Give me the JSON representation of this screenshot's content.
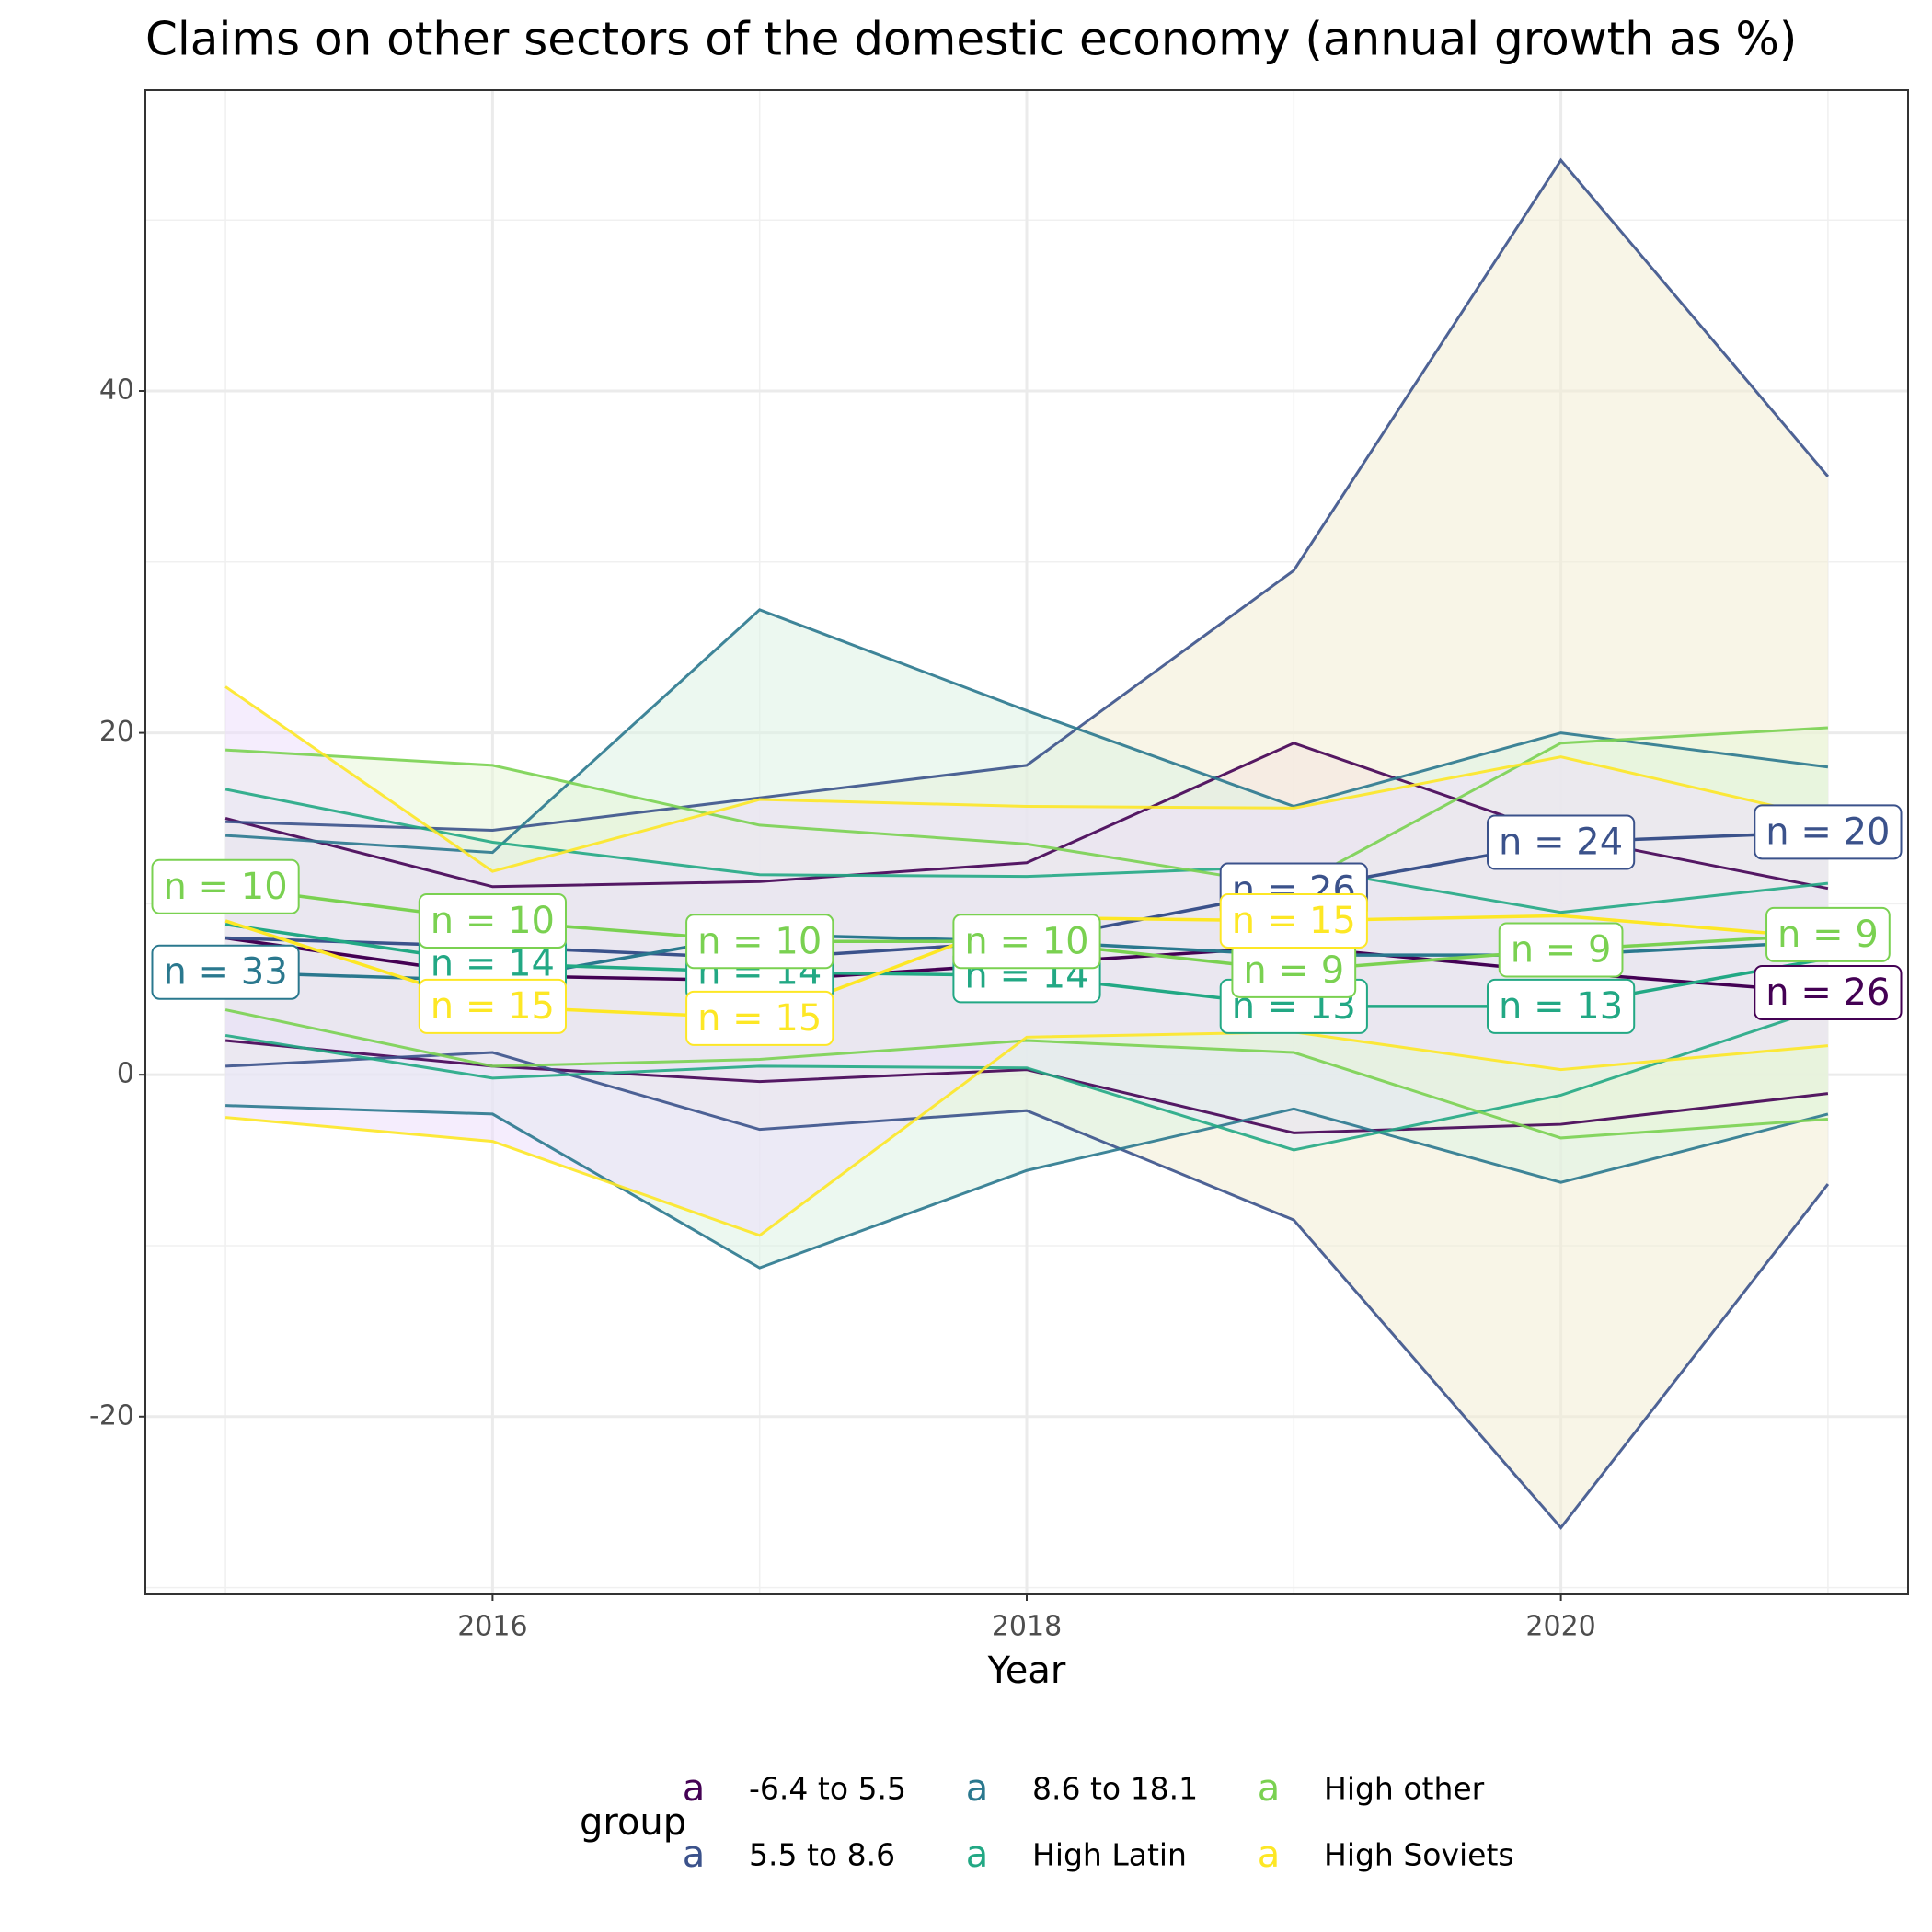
{
  "chart_data": {
    "type": "line",
    "title": "Claims on other sectors of the domestic economy (annual growth as %)",
    "x_label": "Year",
    "legend_title": "group",
    "legend_key": "a",
    "x": [
      2015,
      2016,
      2017,
      2018,
      2019,
      2020,
      2021
    ],
    "xlim": [
      2014.7,
      2021.3
    ],
    "xticks": [
      2016,
      2018,
      2020
    ],
    "ylim": [
      -30.4,
      57.6
    ],
    "yticks": [
      -20,
      0,
      20,
      40
    ],
    "grid": true,
    "legend_position": "bottom",
    "series": [
      {
        "name": "-6.4 to 5.5",
        "color": "#440154",
        "fill": "#f7dcef",
        "values": [
          8,
          5.8,
          5.5,
          6.5,
          7.5,
          6,
          4.8
        ],
        "upper": [
          15,
          11,
          11.3,
          12.4,
          19.4,
          14,
          10.9
        ],
        "lower": [
          2,
          0.5,
          -0.4,
          0.3,
          -3.4,
          -2.9,
          -1.1
        ],
        "labels": [
          null,
          null,
          null,
          null,
          null,
          null,
          "n = 26"
        ]
      },
      {
        "name": "5.5 to 8.6",
        "color": "#3b528b",
        "fill": "#f2edd4",
        "values": [
          8,
          7.5,
          6.8,
          7.8,
          10.8,
          13.6,
          14.2
        ],
        "upper": [
          14.8,
          14.3,
          16.2,
          18.1,
          29.5,
          53.5,
          35
        ],
        "lower": [
          0.5,
          1.3,
          -3.2,
          -2.1,
          -8.5,
          -26.5,
          -6.4
        ],
        "labels": [
          null,
          null,
          null,
          null,
          "n = 26",
          "n = 24",
          "n = 20"
        ]
      },
      {
        "name": "8.6 to 18.1",
        "color": "#2a788e",
        "fill": "#dcf3e3",
        "values": [
          6,
          5.5,
          8.2,
          7.8,
          7,
          7,
          7.8
        ],
        "upper": [
          14,
          13,
          27.2,
          21.3,
          15.7,
          20,
          18
        ],
        "lower": [
          -1.8,
          -2.3,
          -11.3,
          -5.6,
          -2,
          -6.3,
          -2.3
        ],
        "labels": [
          "n = 33",
          null,
          null,
          null,
          null,
          null,
          null
        ]
      },
      {
        "name": "High Latin",
        "color": "#22a884",
        "fill": "#e3e9f5",
        "values": [
          8.8,
          6.5,
          6,
          5.8,
          4,
          4,
          6.8
        ],
        "upper": [
          16.7,
          13.6,
          11.7,
          11.6,
          12.2,
          9.5,
          11.2
        ],
        "lower": [
          2.3,
          -0.2,
          0.5,
          0.4,
          -4.4,
          -1.2,
          4
        ],
        "labels": [
          null,
          "n = 14",
          "n = 14",
          "n = 14",
          "n = 13",
          "n = 13",
          null
        ]
      },
      {
        "name": "High other",
        "color": "#7ad151",
        "fill": "#e8f5d8",
        "values": [
          11,
          9,
          7.8,
          7.8,
          6.1,
          7.3,
          8.2
        ],
        "upper": [
          19,
          18.1,
          14.6,
          13.5,
          11,
          19.4,
          20.3
        ],
        "lower": [
          3.8,
          0.5,
          0.9,
          2,
          1.3,
          -3.7,
          -2.6
        ],
        "labels": [
          "n = 10",
          "n = 10",
          "n = 10",
          "n = 10",
          "n = 9",
          "n = 9",
          "n = 9"
        ]
      },
      {
        "name": "High Soviets",
        "color": "#fde725",
        "fill": "#ecdffb",
        "values": [
          9,
          4,
          3.3,
          9.2,
          9,
          9.3,
          8
        ],
        "upper": [
          22.7,
          11.9,
          16.1,
          15.7,
          15.6,
          18.6,
          15
        ],
        "lower": [
          -2.5,
          -3.9,
          -9.4,
          2.2,
          2.5,
          0.3,
          1.7
        ],
        "labels": [
          null,
          "n = 15",
          "n = 15",
          null,
          "n = 15",
          null,
          null
        ]
      }
    ]
  }
}
